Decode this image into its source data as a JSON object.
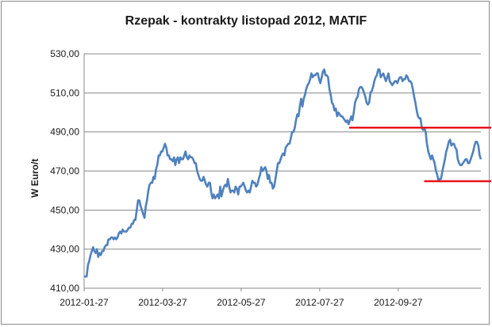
{
  "chart_data": {
    "type": "line",
    "title": "Rzepak - kontrakty listopad 2012, MATIF",
    "xlabel": "",
    "ylabel": "W Euro/t",
    "ylim": [
      410,
      530
    ],
    "y_ticks": [
      "410,00",
      "430,00",
      "450,00",
      "470,00",
      "490,00",
      "510,00",
      "530,00"
    ],
    "x_ticks": [
      "2012-01-27",
      "2012-03-27",
      "2012-05-27",
      "2012-07-27",
      "2012-09-27"
    ],
    "grid": "horizontal",
    "line_color": "#4f81bd",
    "annotation_color": "#e8141c",
    "series": [
      {
        "values": [
          416,
          416,
          416,
          422,
          424,
          427,
          429,
          431,
          429,
          428,
          430,
          426,
          428,
          427,
          429,
          429,
          431,
          432,
          432,
          435,
          435,
          436,
          436,
          435,
          436,
          435,
          436,
          438,
          439,
          438,
          440,
          439,
          439,
          439,
          440,
          441,
          441,
          443,
          443,
          445,
          445,
          450,
          455,
          455,
          452,
          450,
          448,
          446,
          452,
          455,
          460,
          463,
          464,
          464,
          467,
          466,
          471,
          473,
          478,
          478,
          480,
          480,
          482,
          484,
          482,
          478,
          478,
          476,
          476,
          475,
          477,
          473,
          476,
          477,
          474,
          477,
          476,
          476,
          478,
          480,
          477,
          476,
          478,
          477,
          477,
          476,
          474,
          474,
          470,
          468,
          466,
          465,
          465,
          467,
          465,
          463,
          462,
          464,
          464,
          459,
          456,
          458,
          456,
          457,
          458,
          456,
          462,
          457,
          460,
          462,
          463,
          462,
          466,
          462,
          459,
          460,
          460,
          459,
          462,
          461,
          458,
          462,
          462,
          463,
          464,
          462,
          460,
          459,
          460,
          459,
          462,
          465,
          464,
          464,
          462,
          463,
          466,
          468,
          472,
          470,
          471,
          472,
          470,
          466,
          468,
          464,
          464,
          461,
          462,
          466,
          470,
          474,
          474,
          476,
          478,
          479,
          478,
          482,
          483,
          484,
          484,
          487,
          490,
          490,
          492,
          496,
          499,
          498,
          503,
          507,
          503,
          507,
          509,
          512,
          514,
          515,
          517,
          520,
          518,
          519,
          519,
          520,
          520,
          517,
          515,
          518,
          521,
          522,
          519,
          519,
          518,
          512,
          509,
          505,
          504,
          501,
          502,
          498,
          500,
          499,
          498,
          498,
          497,
          496,
          495,
          496,
          494,
          496,
          498,
          496,
          500,
          505,
          507,
          508,
          512,
          513,
          513,
          512,
          510,
          508,
          505,
          504,
          505,
          510,
          511,
          513,
          516,
          518,
          519,
          522,
          522,
          518,
          519,
          520,
          518,
          516,
          518,
          520,
          516,
          515,
          514,
          515,
          516,
          516,
          515,
          517,
          518,
          518,
          516,
          517,
          517,
          519,
          518,
          516,
          516,
          515,
          512,
          508,
          505,
          501,
          498,
          497,
          497,
          492,
          491,
          492,
          490,
          484,
          480,
          478,
          476,
          478,
          476,
          474,
          470,
          468,
          465,
          466,
          466,
          470,
          473,
          476,
          480,
          482,
          485,
          486,
          483,
          484,
          484,
          482,
          481,
          476,
          474,
          473,
          473,
          474,
          475,
          476,
          476,
          474,
          474,
          476,
          478,
          480,
          483,
          485,
          485,
          483,
          478,
          476
        ]
      }
    ],
    "annotations": [
      {
        "type": "hline",
        "y": 492.2,
        "x_from": 0.668,
        "x_to": 1.0
      },
      {
        "type": "hline",
        "y": 464.8,
        "x_from": 0.857,
        "x_to": 1.0
      }
    ]
  }
}
